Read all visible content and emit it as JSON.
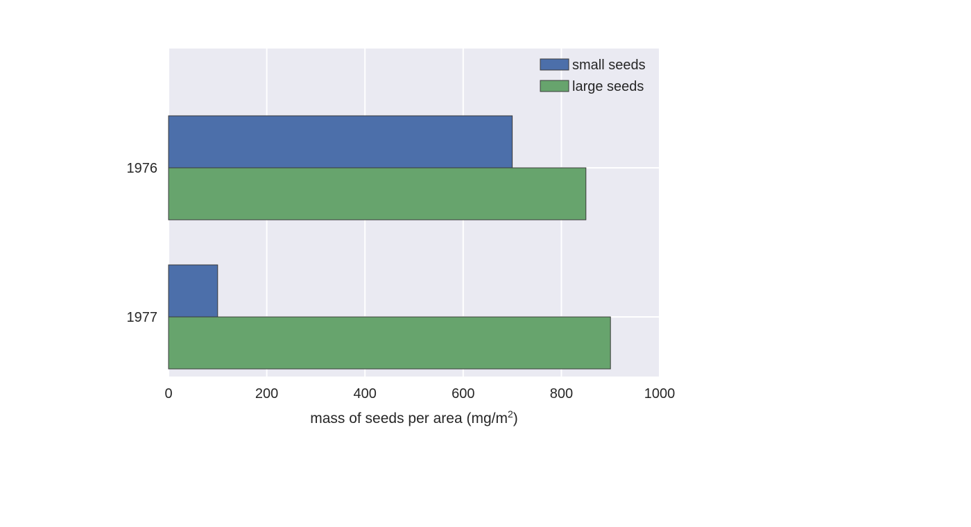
{
  "chart_data": {
    "type": "bar",
    "orientation": "horizontal",
    "title": "",
    "categories": [
      "1976",
      "1977"
    ],
    "series": [
      {
        "name": "small seeds",
        "values": [
          700,
          100
        ],
        "color": "#4c6faa"
      },
      {
        "name": "large seeds",
        "values": [
          850,
          900
        ],
        "color": "#67a46d"
      }
    ],
    "xlabel": "mass of seeds per area (mg/m",
    "xlabel_superscript": "2",
    "xlabel_suffix": ")",
    "ylabel": "",
    "xlim": [
      0,
      1000
    ],
    "xticks": [
      "0",
      "200",
      "400",
      "600",
      "800",
      "1000"
    ],
    "xtick_values": [
      0,
      200,
      400,
      600,
      800,
      1000
    ],
    "grid": true,
    "legend_position": "top-right",
    "background_color": "#eaeaf2",
    "grid_color": "#ffffff",
    "edge_color": "#3a3a3a"
  }
}
